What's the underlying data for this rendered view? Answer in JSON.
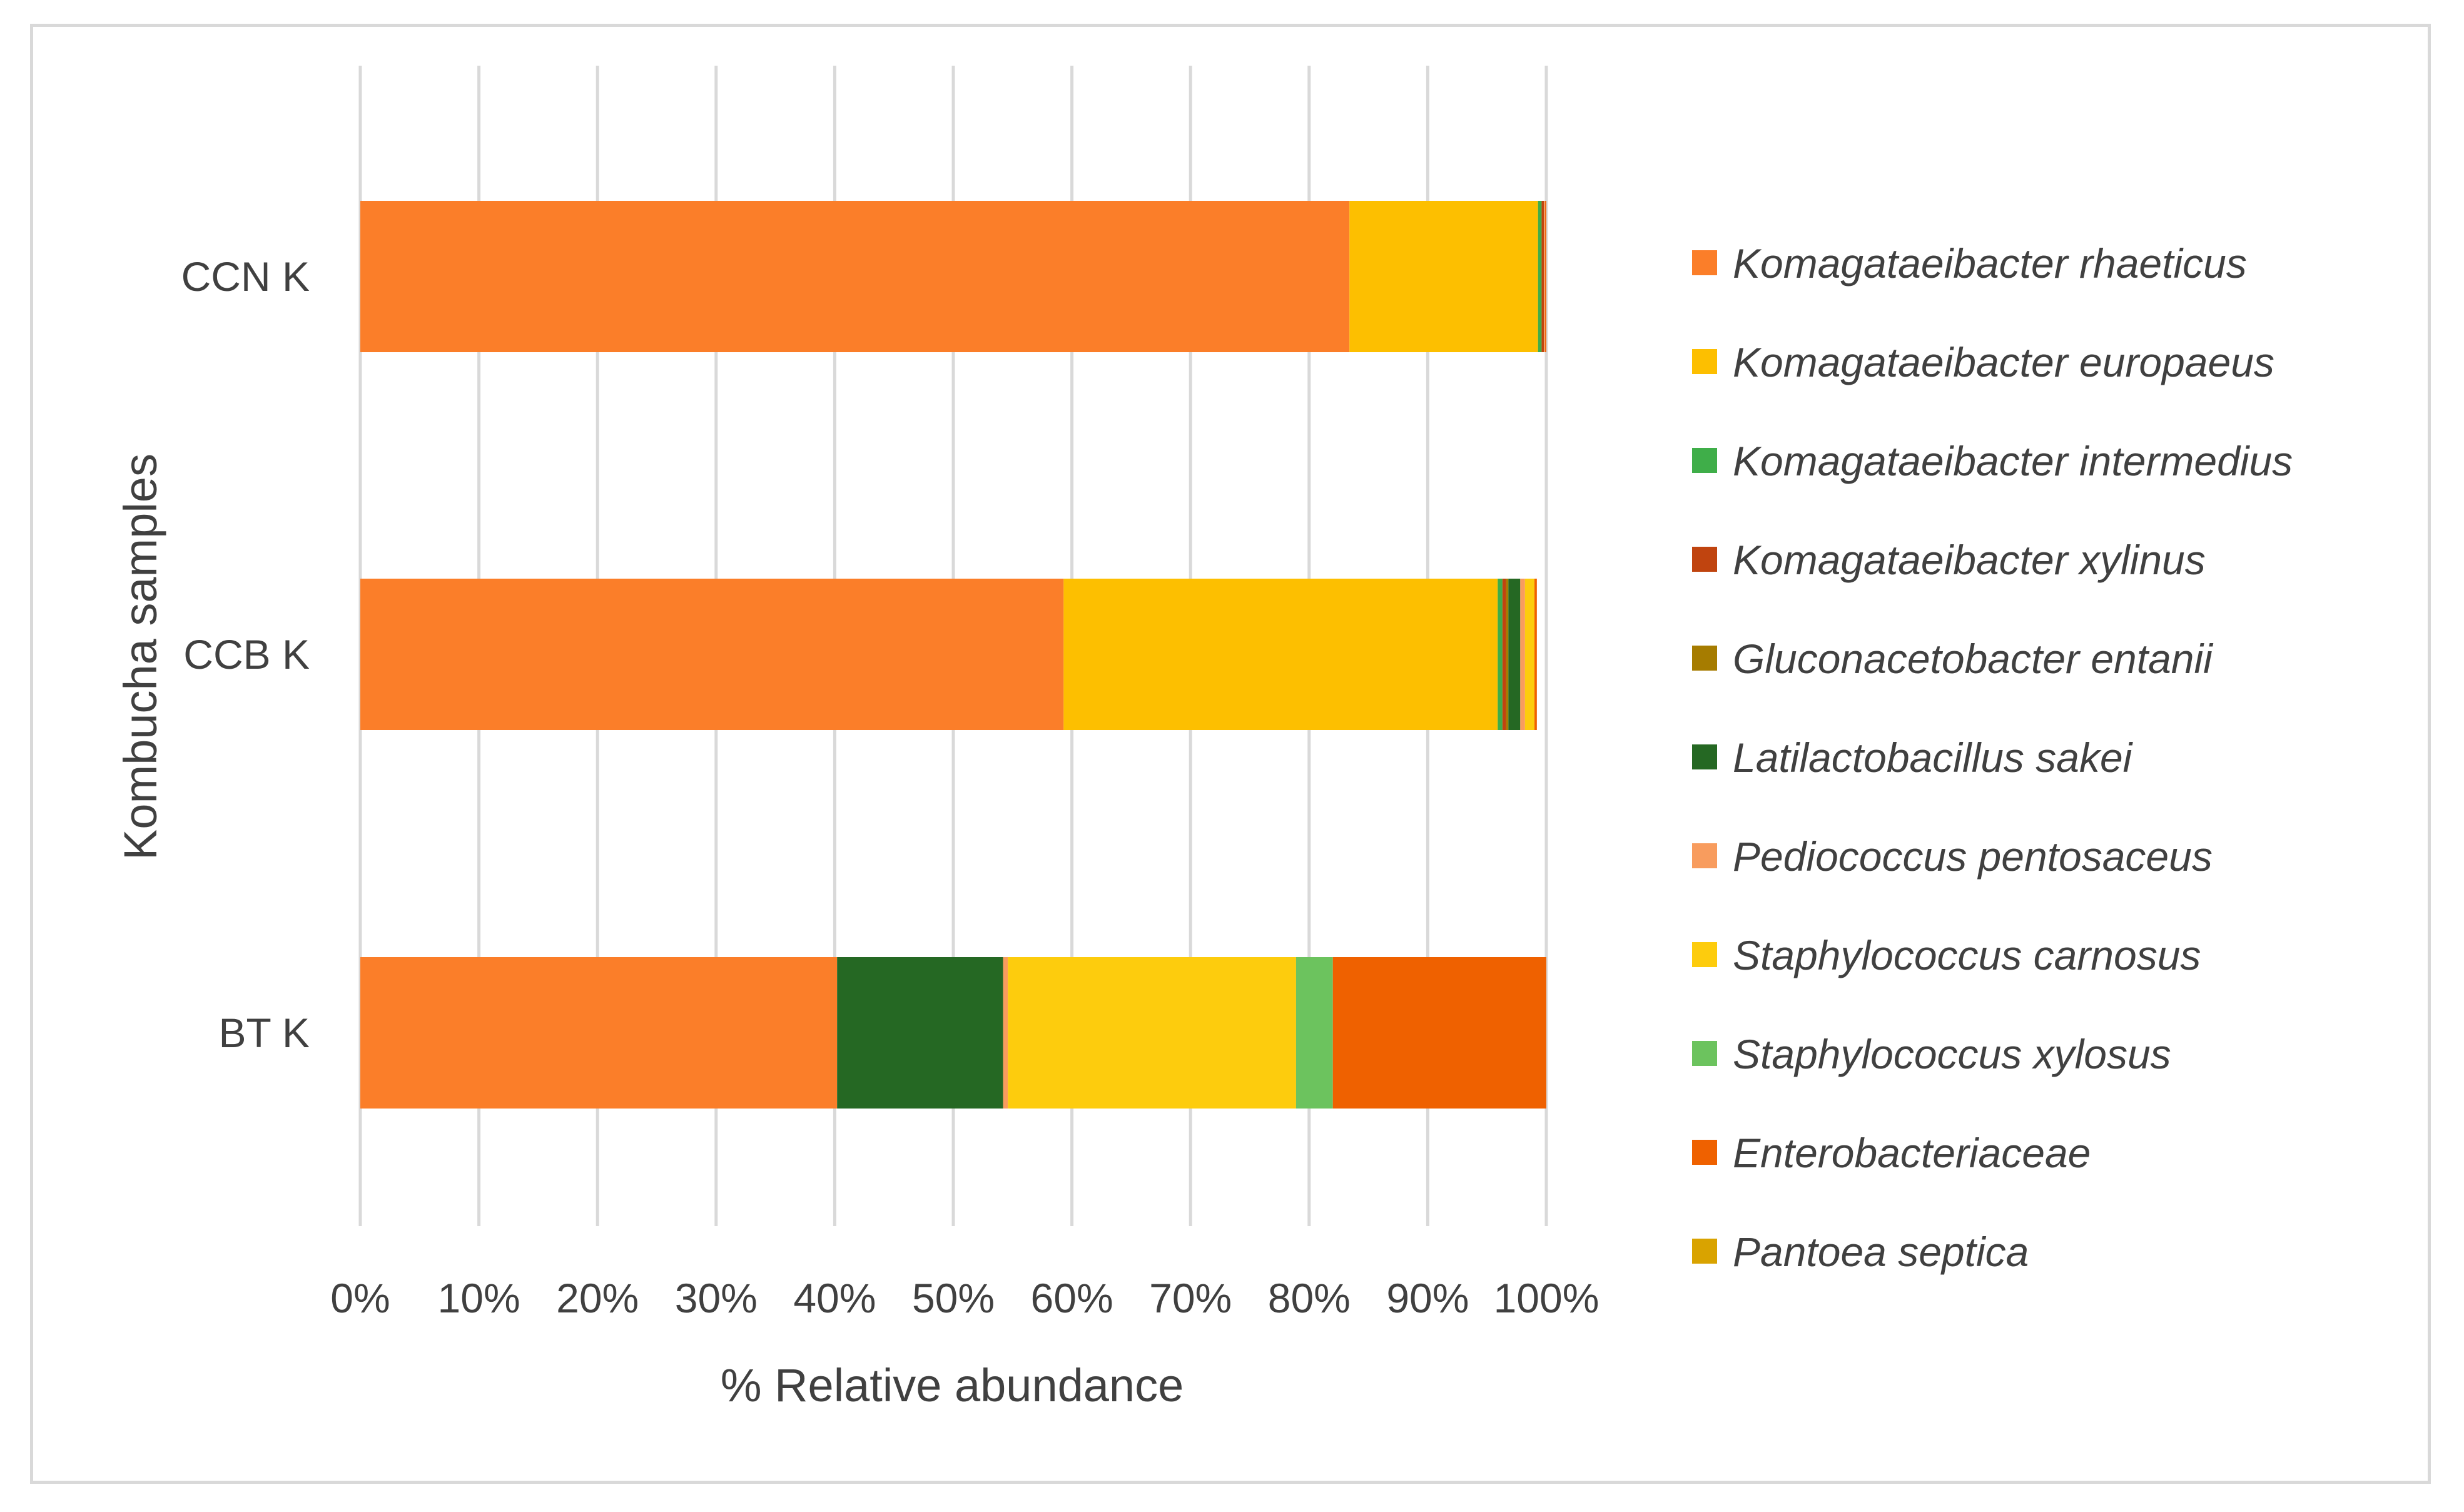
{
  "chart_data": {
    "type": "bar",
    "orientation": "horizontal",
    "stacked": "100%",
    "title": "",
    "xlabel": "% Relative abundance",
    "ylabel": "Kombucha samples",
    "xlim": [
      0,
      100
    ],
    "x_ticks": [
      "0%",
      "10%",
      "20%",
      "30%",
      "40%",
      "50%",
      "60%",
      "70%",
      "80%",
      "90%",
      "100%"
    ],
    "grid": "vertical gridlines on",
    "legend_position": "right",
    "categories": [
      "CCN K",
      "CCB K",
      "BT K"
    ],
    "series": [
      {
        "name": "Komagataeibacter rhaeticus",
        "color": "#fb7e29",
        "values": [
          83.4,
          59.3,
          40.2
        ]
      },
      {
        "name": "Komagataeibacter europaeus",
        "color": "#fdbf00",
        "values": [
          15.9,
          36.6,
          0
        ]
      },
      {
        "name": "Komagataeibacter intermedius",
        "color": "#3fae49",
        "values": [
          0.3,
          0.4,
          0
        ]
      },
      {
        "name": "Komagataeibacter xylinus",
        "color": "#c0440f",
        "values": [
          0.2,
          0.3,
          0
        ]
      },
      {
        "name": "Gluconacetobacter entanii",
        "color": "#a67c00",
        "values": [
          0,
          0.2,
          0
        ]
      },
      {
        "name": "Latilactobacillus sakei",
        "color": "#256823",
        "values": [
          0,
          1.0,
          14.0
        ]
      },
      {
        "name": "Pediococcus pentosaceus",
        "color": "#f89c5e",
        "values": [
          0.1,
          0.4,
          0.4
        ]
      },
      {
        "name": "Staphylococcus carnosus",
        "color": "#fdcc0d",
        "values": [
          0,
          0.8,
          24.3
        ]
      },
      {
        "name": "Staphylococcus xylosus",
        "color": "#6cc35e",
        "values": [
          0,
          0,
          3.1
        ]
      },
      {
        "name": "Enterobacteriaceae",
        "color": "#ef6100",
        "values": [
          0.1,
          0.2,
          18.0
        ]
      },
      {
        "name": "Pantoea septica",
        "color": "#d9a300",
        "values": [
          0,
          0,
          0
        ]
      }
    ]
  }
}
